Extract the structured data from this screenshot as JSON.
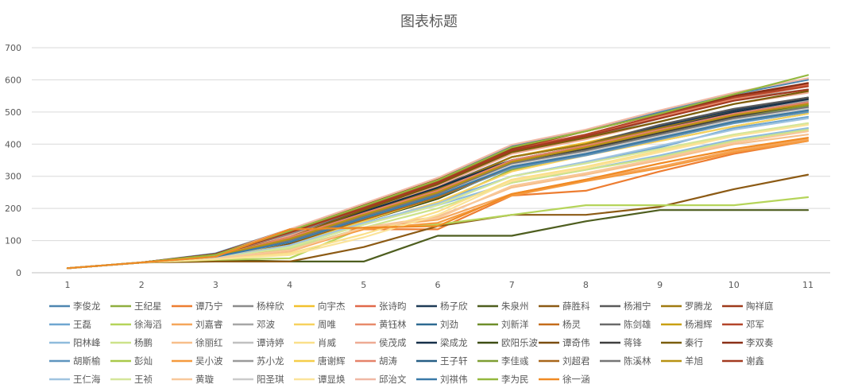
{
  "chart_data": {
    "type": "line",
    "title": "图表标题",
    "xlabel": "",
    "ylabel": "",
    "x": [
      "1",
      "2",
      "3",
      "4",
      "5",
      "6",
      "7",
      "8",
      "9",
      "10",
      "11"
    ],
    "ylim": [
      0,
      700
    ],
    "yticks": [
      0,
      100,
      200,
      300,
      400,
      500,
      600,
      700
    ],
    "grid": true,
    "legend_position": "bottom",
    "series": [
      {
        "name": "李俊龙",
        "color": "#4e86b0",
        "values": [
          14,
          32,
          60,
          135,
          205,
          290,
          395,
          440,
          500,
          555,
          600
        ]
      },
      {
        "name": "王纪星",
        "color": "#8fae3f",
        "values": [
          14,
          32,
          52,
          85,
          150,
          215,
          320,
          370,
          410,
          455,
          495
        ]
      },
      {
        "name": "谭乃宁",
        "color": "#ed7d31",
        "values": [
          14,
          32,
          58,
          135,
          135,
          135,
          240,
          255,
          315,
          370,
          410
        ]
      },
      {
        "name": "杨梓欣",
        "color": "#8c8c8c",
        "values": [
          14,
          32,
          55,
          120,
          200,
          280,
          375,
          420,
          480,
          540,
          570
        ]
      },
      {
        "name": "向宇杰",
        "color": "#f2c12e",
        "values": [
          14,
          32,
          50,
          100,
          180,
          260,
          360,
          405,
          455,
          500,
          535
        ]
      },
      {
        "name": "张诗昀",
        "color": "#e0694a",
        "values": [
          14,
          32,
          58,
          130,
          205,
          285,
          385,
          430,
          490,
          545,
          585
        ]
      },
      {
        "name": "杨子欣",
        "color": "#1f3b57",
        "values": [
          14,
          32,
          55,
          110,
          190,
          270,
          350,
          395,
          455,
          505,
          545
        ]
      },
      {
        "name": "朱泉州",
        "color": "#4e5e1f",
        "values": [
          14,
          32,
          40,
          35,
          35,
          115,
          115,
          160,
          195,
          195,
          195
        ]
      },
      {
        "name": "薛胜科",
        "color": "#8c5a14",
        "values": [
          14,
          32,
          35,
          35,
          80,
          145,
          180,
          180,
          205,
          260,
          305
        ]
      },
      {
        "name": "杨湘宁",
        "color": "#5a5a5a",
        "values": [
          14,
          32,
          55,
          115,
          195,
          265,
          360,
          400,
          460,
          510,
          545
        ]
      },
      {
        "name": "罗腾龙",
        "color": "#a07a10",
        "values": [
          14,
          32,
          52,
          105,
          185,
          260,
          360,
          400,
          450,
          500,
          540
        ]
      },
      {
        "name": "陶祥庭",
        "color": "#9e3a1a",
        "values": [
          14,
          32,
          58,
          132,
          210,
          290,
          385,
          440,
          495,
          545,
          590
        ]
      },
      {
        "name": "王磊",
        "color": "#6fa6d0",
        "values": [
          14,
          32,
          50,
          95,
          150,
          220,
          300,
          345,
          390,
          450,
          485
        ]
      },
      {
        "name": "徐海滔",
        "color": "#b5d45a",
        "values": [
          14,
          32,
          40,
          45,
          140,
          150,
          180,
          210,
          210,
          210,
          235
        ]
      },
      {
        "name": "刘嘉睿",
        "color": "#f5a65b",
        "values": [
          14,
          32,
          48,
          75,
          140,
          165,
          245,
          290,
          330,
          380,
          415
        ]
      },
      {
        "name": "邓波",
        "color": "#a6a6a6",
        "values": [
          14,
          32,
          50,
          100,
          175,
          250,
          350,
          395,
          445,
          495,
          535
        ]
      },
      {
        "name": "周唯",
        "color": "#f7d15e",
        "values": [
          14,
          32,
          45,
          80,
          150,
          220,
          315,
          365,
          410,
          455,
          495
        ]
      },
      {
        "name": "黄钰林",
        "color": "#e88a6b",
        "values": [
          14,
          32,
          55,
          125,
          200,
          280,
          380,
          425,
          485,
          540,
          580
        ]
      },
      {
        "name": "刘劲",
        "color": "#2e6a91",
        "values": [
          14,
          32,
          50,
          100,
          180,
          255,
          345,
          385,
          440,
          495,
          530
        ]
      },
      {
        "name": "刘新洋",
        "color": "#6e8e2a",
        "values": [
          14,
          32,
          50,
          90,
          165,
          240,
          340,
          380,
          430,
          480,
          510
        ]
      },
      {
        "name": "杨灵",
        "color": "#c46c1a",
        "values": [
          14,
          32,
          48,
          85,
          160,
          230,
          330,
          375,
          425,
          470,
          505
        ]
      },
      {
        "name": "陈剑雄",
        "color": "#6a6a6a",
        "values": [
          14,
          32,
          52,
          105,
          185,
          255,
          350,
          390,
          440,
          490,
          525
        ]
      },
      {
        "name": "杨湘辉",
        "color": "#c9a012",
        "values": [
          14,
          32,
          50,
          95,
          170,
          245,
          345,
          385,
          435,
          485,
          520
        ]
      },
      {
        "name": "邓军",
        "color": "#b3452a",
        "values": [
          14,
          32,
          56,
          128,
          205,
          285,
          380,
          430,
          490,
          545,
          580
        ]
      },
      {
        "name": "阳林峰",
        "color": "#8fbcdc",
        "values": [
          14,
          32,
          45,
          80,
          150,
          210,
          280,
          320,
          365,
          415,
          450
        ]
      },
      {
        "name": "杨鹏",
        "color": "#cde38a",
        "values": [
          14,
          32,
          45,
          75,
          140,
          200,
          280,
          320,
          360,
          410,
          445
        ]
      },
      {
        "name": "徐丽红",
        "color": "#f7bf8a",
        "values": [
          14,
          32,
          45,
          65,
          140,
          175,
          265,
          305,
          350,
          400,
          430
        ]
      },
      {
        "name": "谭诗婷",
        "color": "#c0c0c0",
        "values": [
          14,
          32,
          48,
          90,
          165,
          235,
          330,
          370,
          420,
          470,
          505
        ]
      },
      {
        "name": "肖威",
        "color": "#fae08a",
        "values": [
          14,
          32,
          42,
          60,
          120,
          190,
          290,
          330,
          380,
          430,
          465
        ]
      },
      {
        "name": "侯茂成",
        "color": "#eeab94",
        "values": [
          14,
          32,
          52,
          115,
          190,
          270,
          370,
          415,
          470,
          525,
          560
        ]
      },
      {
        "name": "梁成龙",
        "color": "#17304a",
        "values": [
          14,
          32,
          54,
          108,
          190,
          265,
          350,
          390,
          445,
          500,
          540
        ]
      },
      {
        "name": "欧阳乐波",
        "color": "#3e4e14",
        "values": [
          14,
          32,
          50,
          90,
          160,
          230,
          330,
          370,
          420,
          470,
          505
        ]
      },
      {
        "name": "谭奇伟",
        "color": "#7a4e10",
        "values": [
          14,
          32,
          50,
          90,
          165,
          235,
          335,
          380,
          430,
          480,
          515
        ]
      },
      {
        "name": "蒋锋",
        "color": "#3f3f3f",
        "values": [
          14,
          32,
          52,
          100,
          180,
          250,
          345,
          385,
          435,
          485,
          520
        ]
      },
      {
        "name": "秦行",
        "color": "#7a5e0a",
        "values": [
          14,
          32,
          55,
          110,
          195,
          275,
          375,
          420,
          470,
          525,
          565
        ]
      },
      {
        "name": "李双奏",
        "color": "#8a3018",
        "values": [
          14,
          32,
          58,
          132,
          210,
          288,
          390,
          440,
          495,
          550,
          590
        ]
      },
      {
        "name": "胡斯榆",
        "color": "#5f95bf",
        "values": [
          14,
          32,
          48,
          95,
          170,
          235,
          325,
          365,
          415,
          465,
          500
        ]
      },
      {
        "name": "彭灿",
        "color": "#a9c94a",
        "values": [
          14,
          32,
          48,
          95,
          165,
          235,
          335,
          375,
          420,
          470,
          505
        ]
      },
      {
        "name": "吴小波",
        "color": "#f59a3e",
        "values": [
          14,
          32,
          46,
          70,
          135,
          155,
          240,
          285,
          325,
          375,
          410
        ]
      },
      {
        "name": "苏小龙",
        "color": "#9a9a9a",
        "values": [
          14,
          32,
          50,
          95,
          170,
          245,
          340,
          380,
          430,
          480,
          515
        ]
      },
      {
        "name": "唐谢辉",
        "color": "#f5cd4a",
        "values": [
          14,
          32,
          48,
          85,
          160,
          235,
          330,
          375,
          420,
          470,
          505
        ]
      },
      {
        "name": "胡涛",
        "color": "#e5826a",
        "values": [
          14,
          32,
          52,
          110,
          185,
          255,
          350,
          395,
          445,
          495,
          530
        ]
      },
      {
        "name": "王子轩",
        "color": "#265e85",
        "values": [
          14,
          32,
          52,
          100,
          175,
          245,
          335,
          375,
          425,
          475,
          510
        ]
      },
      {
        "name": "李佳彧",
        "color": "#7e9e32",
        "values": [
          14,
          32,
          52,
          100,
          175,
          245,
          340,
          380,
          430,
          480,
          520
        ]
      },
      {
        "name": "刘超君",
        "color": "#a8661a",
        "values": [
          14,
          32,
          50,
          95,
          165,
          235,
          330,
          370,
          420,
          470,
          505
        ]
      },
      {
        "name": "陈溪林",
        "color": "#757575",
        "values": [
          14,
          32,
          52,
          100,
          175,
          245,
          340,
          380,
          430,
          480,
          515
        ]
      },
      {
        "name": "羊旭",
        "color": "#b89212",
        "values": [
          14,
          32,
          52,
          105,
          180,
          250,
          345,
          390,
          440,
          490,
          525
        ]
      },
      {
        "name": "谢鑫",
        "color": "#a33a20",
        "values": [
          14,
          32,
          56,
          125,
          200,
          280,
          380,
          425,
          480,
          535,
          570
        ]
      },
      {
        "name": "王仁海",
        "color": "#a0c4e0",
        "values": [
          14,
          32,
          45,
          85,
          155,
          215,
          300,
          345,
          395,
          445,
          480
        ]
      },
      {
        "name": "王祯",
        "color": "#d4e69a",
        "values": [
          14,
          32,
          45,
          80,
          150,
          210,
          300,
          340,
          385,
          430,
          465
        ]
      },
      {
        "name": "黄璇",
        "color": "#f8c89a",
        "values": [
          14,
          32,
          45,
          70,
          140,
          170,
          270,
          310,
          355,
          405,
          440
        ]
      },
      {
        "name": "阳圣琪",
        "color": "#cbcbcb",
        "values": [
          14,
          32,
          48,
          95,
          170,
          240,
          335,
          375,
          425,
          475,
          510
        ]
      },
      {
        "name": "谭显焕",
        "color": "#fbe39a",
        "values": [
          14,
          32,
          42,
          55,
          110,
          180,
          285,
          325,
          375,
          425,
          460
        ]
      },
      {
        "name": "邱治文",
        "color": "#f0b8a4",
        "values": [
          14,
          32,
          55,
          135,
          215,
          295,
          398,
          445,
          505,
          560,
          605
        ]
      },
      {
        "name": "刘祺伟",
        "color": "#3a7aa8",
        "values": [
          14,
          32,
          50,
          95,
          170,
          240,
          330,
          370,
          420,
          470,
          505
        ]
      },
      {
        "name": "李为民",
        "color": "#94b83e",
        "values": [
          14,
          32,
          56,
          130,
          208,
          288,
          390,
          440,
          495,
          555,
          615
        ]
      },
      {
        "name": "徐一涵",
        "color": "#f08a24",
        "values": [
          14,
          32,
          50,
          135,
          140,
          145,
          245,
          290,
          340,
          385,
          420
        ]
      }
    ]
  }
}
